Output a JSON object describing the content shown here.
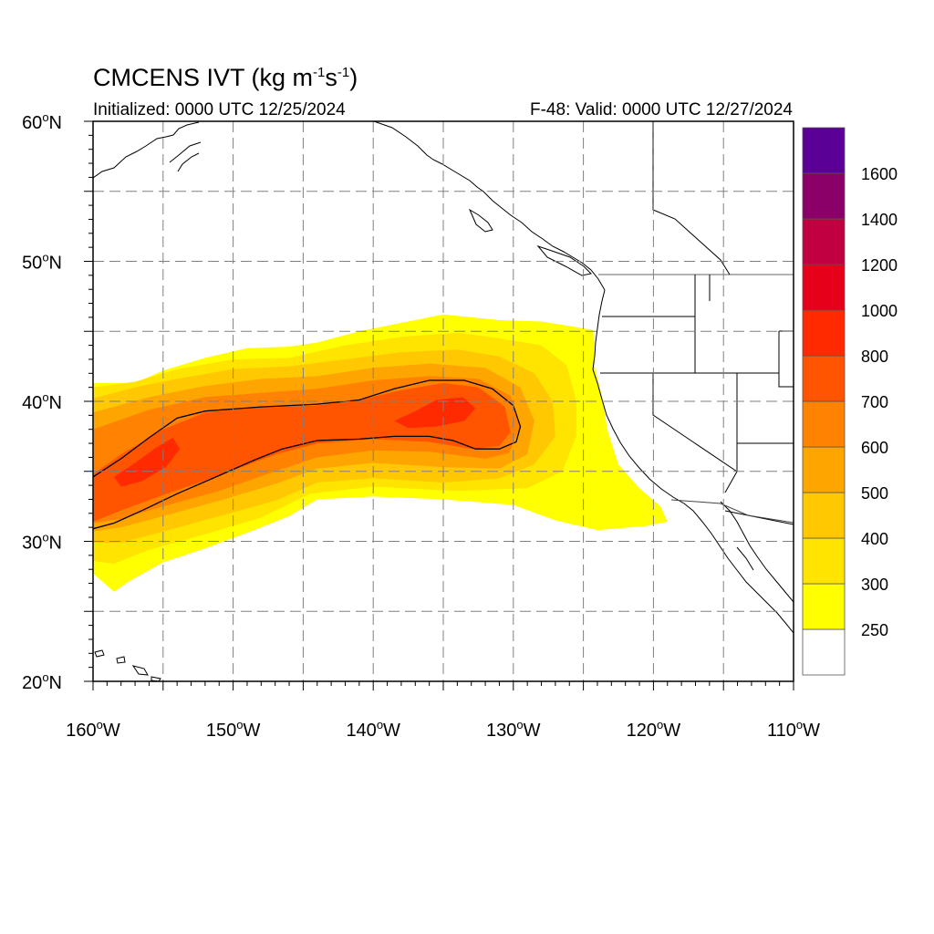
{
  "title_main": "CMCENS IVT (kg m",
  "title_exp1": "-1",
  "title_mid": "s",
  "title_exp2": "-1",
  "title_end": ")",
  "initialized": "Initialized: 0000 UTC 12/25/2024",
  "valid": "F-48: Valid: 0000 UTC 12/27/2024",
  "chart_data": {
    "type": "heatmap",
    "projection": "latitude-longitude",
    "x_range_lon": [
      -160,
      -110
    ],
    "y_range_lat": [
      20,
      60
    ],
    "grid": true,
    "lat_ticks": [
      {
        "value": 60,
        "num": "60",
        "deg": "o",
        "hem": "N"
      },
      {
        "value": 50,
        "num": "50",
        "deg": "o",
        "hem": "N"
      },
      {
        "value": 40,
        "num": "40",
        "deg": "o",
        "hem": "N"
      },
      {
        "value": 30,
        "num": "30",
        "deg": "o",
        "hem": "N"
      },
      {
        "value": 20,
        "num": "20",
        "deg": "o",
        "hem": "N"
      }
    ],
    "lon_ticks": [
      {
        "value": -160,
        "num": "160",
        "deg": "o",
        "hem": "W"
      },
      {
        "value": -150,
        "num": "150",
        "deg": "o",
        "hem": "W"
      },
      {
        "value": -140,
        "num": "140",
        "deg": "o",
        "hem": "W"
      },
      {
        "value": -130,
        "num": "130",
        "deg": "o",
        "hem": "W"
      },
      {
        "value": -120,
        "num": "120",
        "deg": "o",
        "hem": "W"
      },
      {
        "value": -110,
        "num": "110",
        "deg": "o",
        "hem": "W"
      }
    ],
    "colorbar": {
      "labels": [
        "250",
        "300",
        "400",
        "500",
        "600",
        "700",
        "800",
        "1000",
        "1200",
        "1400",
        "1600"
      ],
      "colors": [
        "#ffffff",
        "#ffff00",
        "#ffe400",
        "#ffc800",
        "#ffa500",
        "#ff8200",
        "#ff5500",
        "#ff2a00",
        "#e6001a",
        "#c00040",
        "#8b0068",
        "#5a0096"
      ],
      "placement": "right"
    },
    "bands": [
      {
        "level": 250,
        "color": "#ffff00",
        "outline": [
          [
            -160,
            41.3
          ],
          [
            -157,
            41.3
          ],
          [
            -155,
            42.2
          ],
          [
            -152,
            43.1
          ],
          [
            -149,
            43.8
          ],
          [
            -146,
            43.9
          ],
          [
            -144,
            44.2
          ],
          [
            -141,
            45.0
          ],
          [
            -138,
            45.6
          ],
          [
            -135,
            46.2
          ],
          [
            -131,
            45.8
          ],
          [
            -128,
            45.7
          ],
          [
            -124.3,
            45.1
          ],
          [
            -124.2,
            42.5
          ],
          [
            -123.6,
            40.0
          ],
          [
            -123.3,
            38.0
          ],
          [
            -122.5,
            35.5
          ],
          [
            -121.0,
            33.8
          ],
          [
            -119.5,
            32.5
          ],
          [
            -119.0,
            31.4
          ],
          [
            -120.5,
            31.1
          ],
          [
            -124.0,
            30.8
          ],
          [
            -127.0,
            31.5
          ],
          [
            -130.0,
            32.6
          ],
          [
            -135.0,
            33.0
          ],
          [
            -140.0,
            33.2
          ],
          [
            -144.0,
            33.0
          ],
          [
            -146.0,
            31.8
          ],
          [
            -148.5,
            30.8
          ],
          [
            -152.0,
            29.5
          ],
          [
            -155.0,
            28.5
          ],
          [
            -157.5,
            27.1
          ],
          [
            -158.5,
            26.4
          ],
          [
            -160,
            27.7
          ]
        ]
      },
      {
        "level": 300,
        "color": "#ffe400",
        "outline": [
          [
            -160,
            41.0
          ],
          [
            -157,
            41.4
          ],
          [
            -154,
            42.3
          ],
          [
            -150,
            43.0
          ],
          [
            -146,
            43.1
          ],
          [
            -142,
            44.0
          ],
          [
            -138,
            44.6
          ],
          [
            -134,
            44.9
          ],
          [
            -131,
            44.5
          ],
          [
            -128,
            44.0
          ],
          [
            -126.2,
            42.6
          ],
          [
            -125.5,
            40.0
          ],
          [
            -125.5,
            37.5
          ],
          [
            -126.5,
            35.0
          ],
          [
            -129.0,
            33.8
          ],
          [
            -134.0,
            33.6
          ],
          [
            -140.0,
            33.9
          ],
          [
            -144.5,
            33.4
          ],
          [
            -148.0,
            31.7
          ],
          [
            -152.0,
            30.5
          ],
          [
            -156.0,
            29.4
          ],
          [
            -158.5,
            28.4
          ],
          [
            -160,
            28.6
          ]
        ]
      },
      {
        "level": 400,
        "color": "#ffc800",
        "outline": [
          [
            -160,
            40.2
          ],
          [
            -157,
            41.0
          ],
          [
            -154,
            41.6
          ],
          [
            -150,
            42.3
          ],
          [
            -146,
            42.5
          ],
          [
            -142,
            43.0
          ],
          [
            -138,
            43.5
          ],
          [
            -134,
            43.7
          ],
          [
            -131,
            43.2
          ],
          [
            -128.5,
            42.0
          ],
          [
            -127.2,
            40.0
          ],
          [
            -127.0,
            37.5
          ],
          [
            -128.5,
            35.5
          ],
          [
            -131.0,
            34.5
          ],
          [
            -135.0,
            34.2
          ],
          [
            -140.0,
            34.5
          ],
          [
            -144.0,
            34.2
          ],
          [
            -147.0,
            32.9
          ],
          [
            -151.0,
            31.8
          ],
          [
            -155.0,
            30.7
          ],
          [
            -158.0,
            29.9
          ],
          [
            -160,
            29.9
          ]
        ]
      },
      {
        "level": 500,
        "color": "#ffa500",
        "outline": [
          [
            -160,
            39.2
          ],
          [
            -156,
            40.3
          ],
          [
            -152,
            41.1
          ],
          [
            -148,
            41.6
          ],
          [
            -144,
            41.8
          ],
          [
            -140,
            42.4
          ],
          [
            -136,
            42.7
          ],
          [
            -132,
            42.4
          ],
          [
            -129.5,
            41.0
          ],
          [
            -128.5,
            38.6
          ],
          [
            -129.0,
            36.2
          ],
          [
            -131.0,
            35.2
          ],
          [
            -135.0,
            35.3
          ],
          [
            -140.0,
            35.6
          ],
          [
            -144.0,
            35.2
          ],
          [
            -147.0,
            34.1
          ],
          [
            -151.0,
            32.9
          ],
          [
            -155.0,
            31.8
          ],
          [
            -158.0,
            31.0
          ],
          [
            -160,
            30.7
          ]
        ]
      },
      {
        "level": 600,
        "color": "#ff8200",
        "outline": [
          [
            -160,
            38.0
          ],
          [
            -156,
            39.4
          ],
          [
            -152,
            40.3
          ],
          [
            -148,
            40.6
          ],
          [
            -144,
            40.9
          ],
          [
            -140,
            41.5
          ],
          [
            -136,
            41.8
          ],
          [
            -132.5,
            41.6
          ],
          [
            -130.2,
            40.4
          ],
          [
            -129.5,
            38.3
          ],
          [
            -130.3,
            36.3
          ],
          [
            -132.0,
            35.9
          ],
          [
            -136.0,
            36.4
          ],
          [
            -140.0,
            36.5
          ],
          [
            -144.0,
            36.0
          ],
          [
            -147.0,
            35.0
          ],
          [
            -151.0,
            33.6
          ],
          [
            -155.0,
            32.5
          ],
          [
            -158.0,
            31.6
          ],
          [
            -160,
            31.3
          ]
        ]
      },
      {
        "level": 700,
        "color": "#ff5500",
        "outline": [
          [
            -160,
            34.8
          ],
          [
            -158,
            36.2
          ],
          [
            -155,
            38.0
          ],
          [
            -152,
            39.2
          ],
          [
            -148,
            39.6
          ],
          [
            -144,
            39.7
          ],
          [
            -141,
            40.1
          ],
          [
            -138,
            40.8
          ],
          [
            -135,
            41.3
          ],
          [
            -132.5,
            41.0
          ],
          [
            -130.6,
            39.6
          ],
          [
            -130.2,
            37.8
          ],
          [
            -131.0,
            36.8
          ],
          [
            -133.0,
            36.6
          ],
          [
            -136.0,
            37.1
          ],
          [
            -140.0,
            37.3
          ],
          [
            -144.0,
            37.0
          ],
          [
            -147.0,
            36.2
          ],
          [
            -151.0,
            34.7
          ],
          [
            -155.0,
            33.3
          ],
          [
            -158.0,
            32.2
          ],
          [
            -160,
            31.4
          ]
        ]
      },
      {
        "level": 800,
        "color": "#ff2a00",
        "outline": [
          [
            -158.5,
            34.6
          ],
          [
            -157.0,
            35.6
          ],
          [
            -155.5,
            36.7
          ],
          [
            -154.3,
            37.4
          ],
          [
            -153.8,
            36.6
          ],
          [
            -154.8,
            35.3
          ],
          [
            -156.5,
            34.3
          ],
          [
            -158.0,
            33.9
          ]
        ]
      },
      {
        "level": 800,
        "color": "#ff2a00",
        "outline": [
          [
            -138.5,
            38.6
          ],
          [
            -137.0,
            39.3
          ],
          [
            -135.5,
            40.1
          ],
          [
            -133.6,
            40.3
          ],
          [
            -132.7,
            39.5
          ],
          [
            -133.5,
            38.6
          ],
          [
            -135.5,
            38.2
          ],
          [
            -137.5,
            38.1
          ]
        ]
      }
    ],
    "contour_1000": [
      [
        -160,
        34.6
      ],
      [
        -158,
        35.9
      ],
      [
        -156,
        37.4
      ],
      [
        -154,
        38.8
      ],
      [
        -152,
        39.3
      ],
      [
        -148,
        39.6
      ],
      [
        -144,
        39.8
      ],
      [
        -141,
        40.1
      ],
      [
        -138.5,
        40.9
      ],
      [
        -136,
        41.5
      ],
      [
        -133.5,
        41.5
      ],
      [
        -131.5,
        40.9
      ],
      [
        -130.0,
        39.7
      ],
      [
        -129.5,
        38.2
      ],
      [
        -129.8,
        37.1
      ],
      [
        -131.0,
        36.6
      ],
      [
        -132.7,
        36.6
      ],
      [
        -134.3,
        37.2
      ],
      [
        -136.0,
        37.5
      ],
      [
        -138.5,
        37.5
      ],
      [
        -141.0,
        37.3
      ],
      [
        -144.0,
        37.2
      ],
      [
        -146.5,
        36.6
      ],
      [
        -148.5,
        35.8
      ],
      [
        -151.0,
        34.7
      ],
      [
        -154.0,
        33.4
      ],
      [
        -156.5,
        32.2
      ],
      [
        -158.5,
        31.3
      ],
      [
        -160,
        30.9
      ]
    ]
  }
}
